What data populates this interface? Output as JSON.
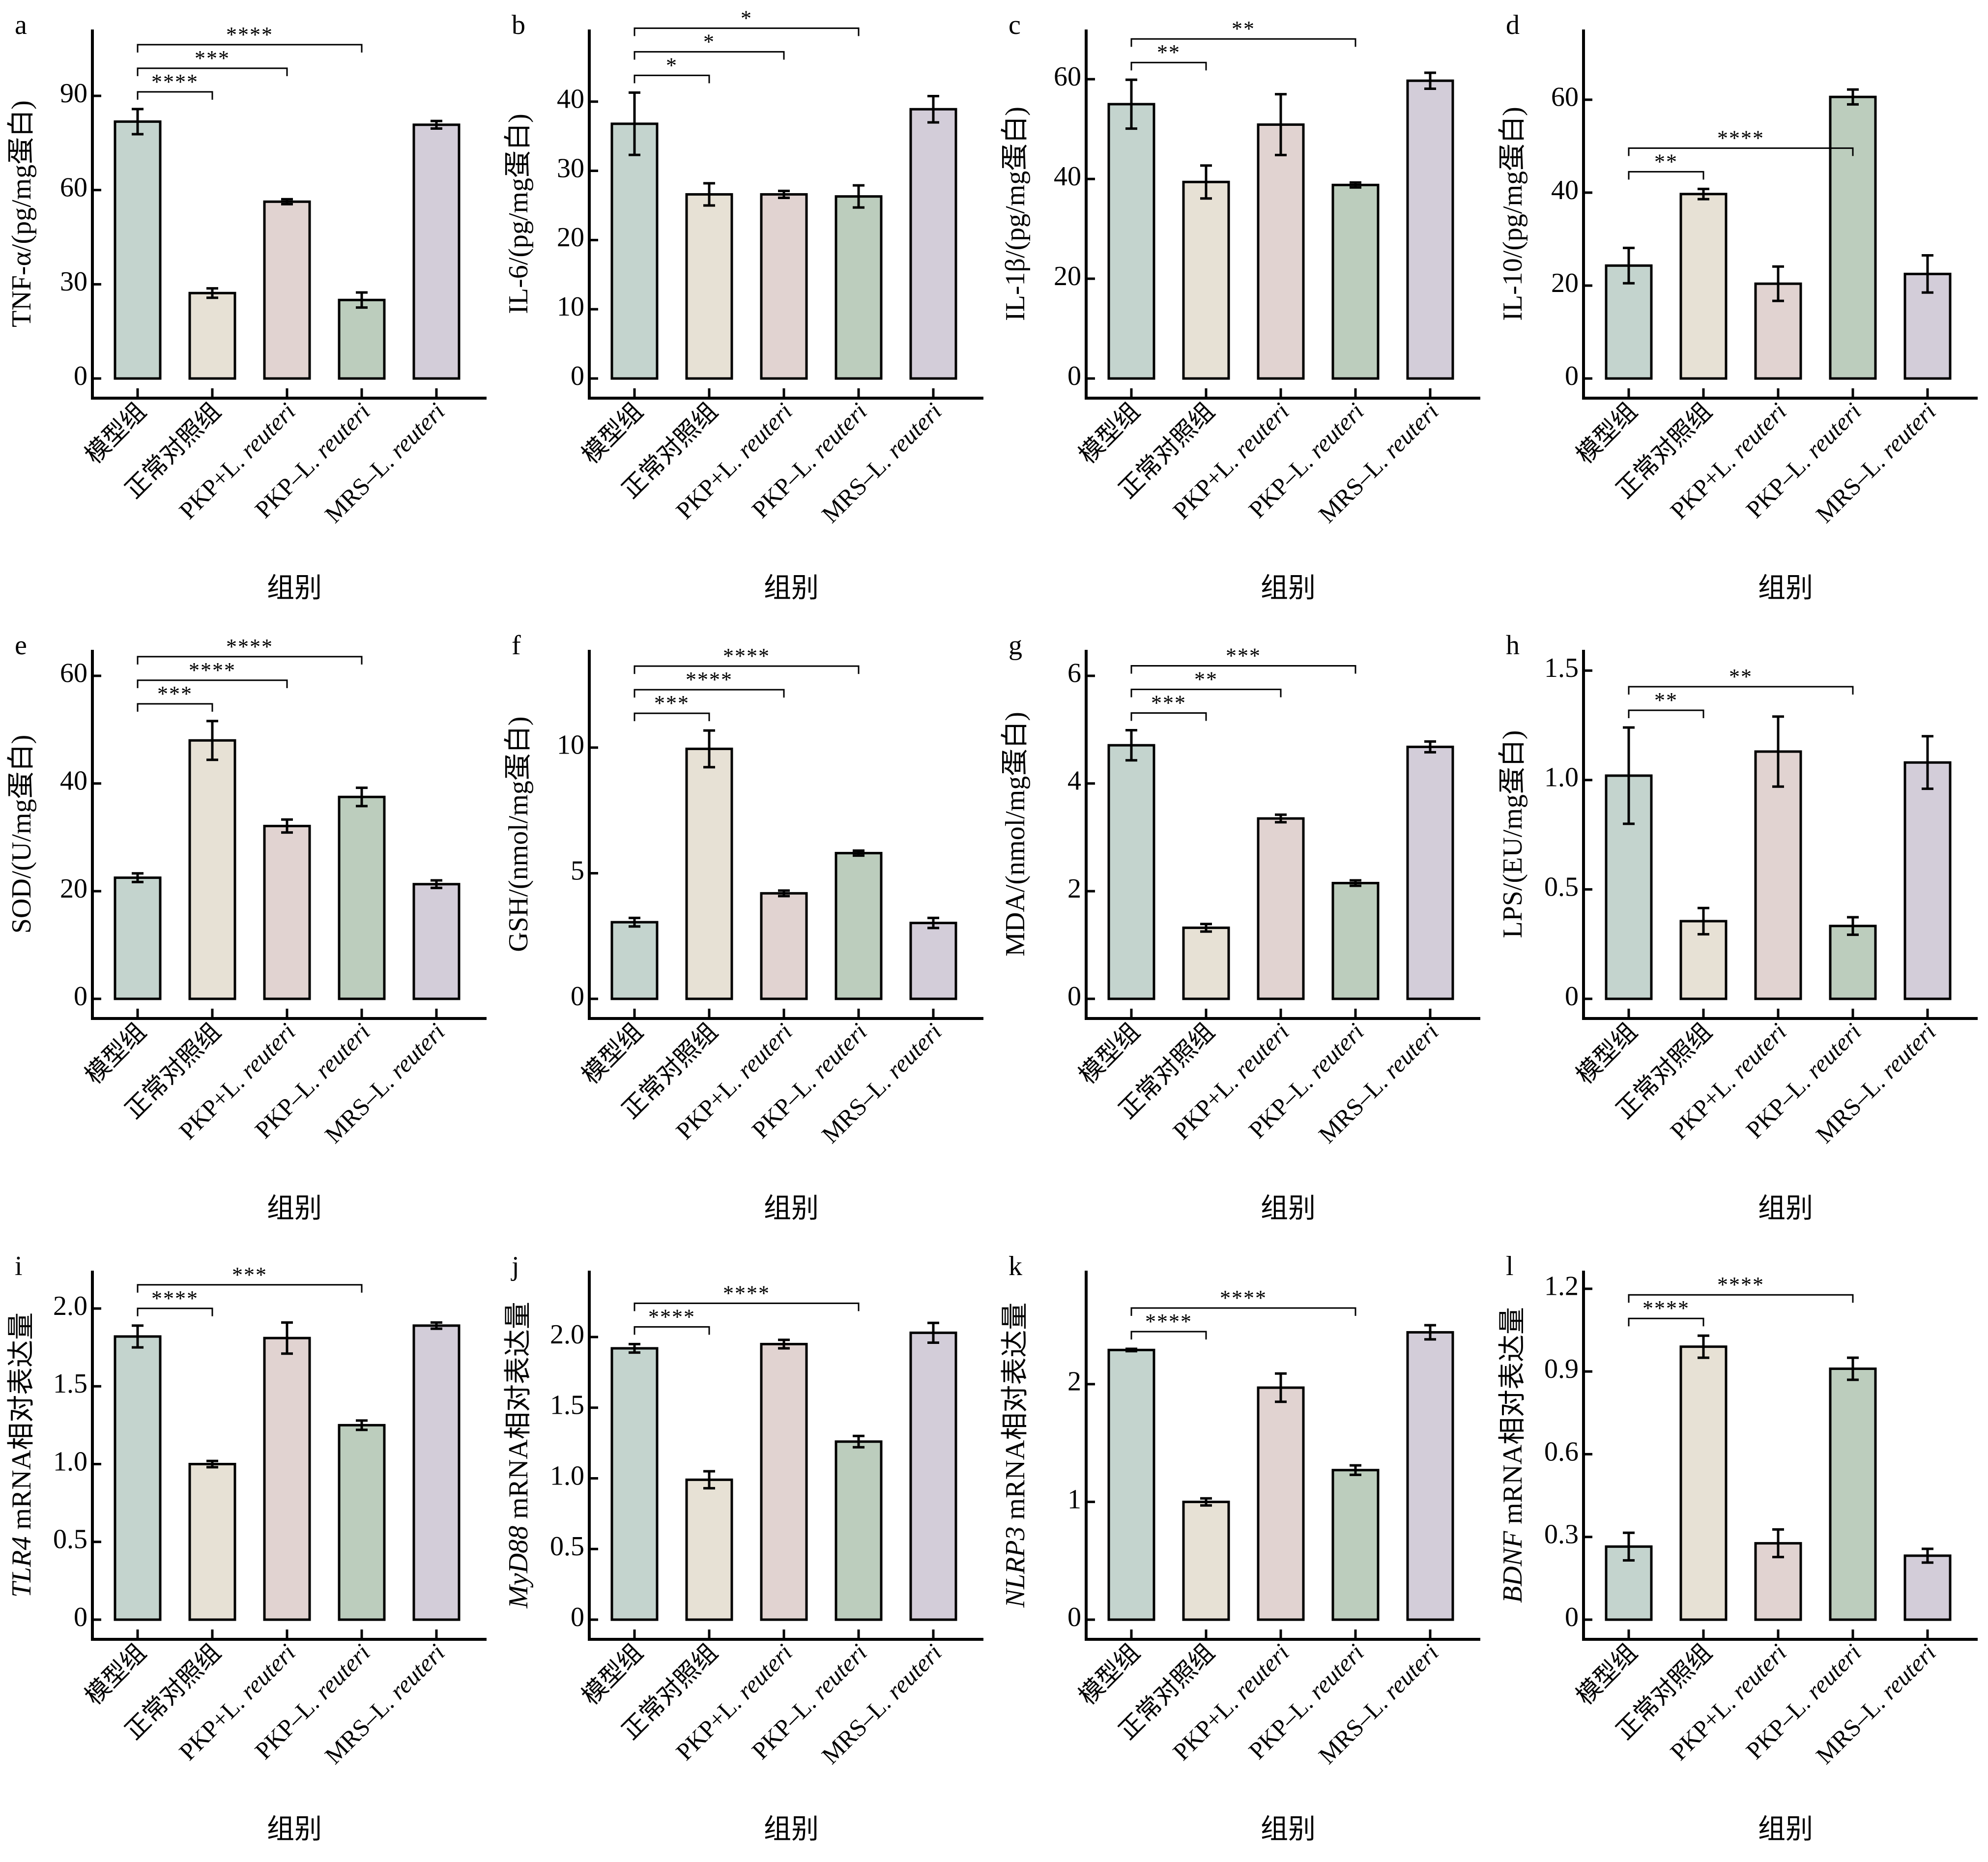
{
  "figure": {
    "groups": [
      "模型组",
      "正常对照组",
      "PKP+L. reuteri",
      "PKP–L. reuteri",
      "MRS–L. reuteri"
    ],
    "group_labels": [
      {
        "plain": "模型组",
        "italic": ""
      },
      {
        "plain": "正常对照组",
        "italic": ""
      },
      {
        "plain": "PKP+L.",
        "italic": " reuteri"
      },
      {
        "plain": "PKP–L.",
        "italic": " reuteri"
      },
      {
        "plain": "MRS–L.",
        "italic": " reuteri"
      }
    ],
    "bar_colors": [
      "#C4D4CE",
      "#E7E1D5",
      "#E1D3D1",
      "#BCCDBD",
      "#D3CDD9"
    ],
    "outline_color": "#000000"
  },
  "chart_data": [
    {
      "panel": "a",
      "type": "bar",
      "xlabel": "组别",
      "ylabel": {
        "italic": "",
        "plain": "TNF-α/(pg/mg蛋白)"
      },
      "ylim": [
        0,
        108
      ],
      "yticks": [
        0,
        30,
        60,
        90
      ],
      "ytick_labels": [
        "0",
        "30",
        "60",
        "90"
      ],
      "categories": [
        "模型组",
        "正常对照组",
        "PKP+L. reuteri",
        "PKP–L. reuteri",
        "MRS–L. reuteri"
      ],
      "values": [
        81.8,
        27.2,
        56.3,
        25.0,
        80.8
      ],
      "errors": [
        4.0,
        1.5,
        0.8,
        2.4,
        1.2
      ],
      "significance": [
        {
          "from": 0,
          "to": 1,
          "label": "****"
        },
        {
          "from": 0,
          "to": 2,
          "label": "***"
        },
        {
          "from": 0,
          "to": 3,
          "label": "****"
        }
      ]
    },
    {
      "panel": "b",
      "type": "bar",
      "xlabel": "组别",
      "ylabel": {
        "italic": "",
        "plain": "IL-6/(pg/mg蛋白)"
      },
      "ylim": [
        0,
        49
      ],
      "yticks": [
        0,
        10,
        20,
        30,
        40
      ],
      "ytick_labels": [
        "0",
        "10",
        "20",
        "30",
        "40"
      ],
      "categories": [
        "模型组",
        "正常对照组",
        "PKP+L. reuteri",
        "PKP–L. reuteri",
        "MRS–L. reuteri"
      ],
      "values": [
        36.8,
        26.6,
        26.6,
        26.3,
        38.9
      ],
      "errors": [
        4.5,
        1.6,
        0.5,
        1.6,
        1.9
      ],
      "significance": [
        {
          "from": 0,
          "to": 1,
          "label": "*"
        },
        {
          "from": 0,
          "to": 2,
          "label": "*"
        },
        {
          "from": 0,
          "to": 3,
          "label": "*"
        }
      ]
    },
    {
      "panel": "c",
      "type": "bar",
      "xlabel": "组别",
      "ylabel": {
        "italic": "",
        "plain": "IL-1β/(pg/mg蛋白)"
      },
      "ylim": [
        0,
        68
      ],
      "yticks": [
        0,
        20,
        40,
        60
      ],
      "ytick_labels": [
        "0",
        "20",
        "40",
        "60"
      ],
      "categories": [
        "模型组",
        "正常对照组",
        "PKP+L. reuteri",
        "PKP–L. reuteri",
        "MRS–L. reuteri"
      ],
      "values": [
        55.0,
        39.4,
        50.9,
        38.8,
        59.7
      ],
      "errors": [
        4.9,
        3.3,
        6.1,
        0.5,
        1.6
      ],
      "significance": [
        {
          "from": 0,
          "to": 1,
          "label": "**"
        },
        {
          "from": 0,
          "to": 3,
          "label": "**"
        }
      ]
    },
    {
      "panel": "d",
      "type": "bar",
      "xlabel": "组别",
      "ylabel": {
        "italic": "",
        "plain": "IL-10/(pg/mg蛋白)"
      },
      "ylim": [
        0,
        73
      ],
      "yticks": [
        0,
        20,
        40,
        60
      ],
      "ytick_labels": [
        "0",
        "20",
        "40",
        "60"
      ],
      "categories": [
        "模型组",
        "正常对照组",
        "PKP+L. reuteri",
        "PKP–L. reuteri",
        "MRS–L. reuteri"
      ],
      "values": [
        24.3,
        39.7,
        20.4,
        60.6,
        22.5
      ],
      "errors": [
        3.8,
        1.1,
        3.7,
        1.6,
        4.0
      ],
      "significance": [
        {
          "from": 0,
          "to": 1,
          "label": "**"
        },
        {
          "from": 0,
          "to": 3,
          "label": "****"
        }
      ]
    },
    {
      "panel": "e",
      "type": "bar",
      "xlabel": "组别",
      "ylabel": {
        "italic": "",
        "plain": "SOD/(U/mg蛋白)"
      },
      "ylim": [
        0,
        63
      ],
      "yticks": [
        0,
        20,
        40,
        60
      ],
      "ytick_labels": [
        "0",
        "20",
        "40",
        "60"
      ],
      "categories": [
        "模型组",
        "正常对照组",
        "PKP+L. reuteri",
        "PKP–L. reuteri",
        "MRS–L. reuteri"
      ],
      "values": [
        22.5,
        48.0,
        32.1,
        37.5,
        21.3
      ],
      "errors": [
        0.8,
        3.6,
        1.2,
        1.7,
        0.7
      ],
      "significance": [
        {
          "from": 0,
          "to": 1,
          "label": "***"
        },
        {
          "from": 0,
          "to": 2,
          "label": "****"
        },
        {
          "from": 0,
          "to": 3,
          "label": "****"
        }
      ]
    },
    {
      "panel": "f",
      "type": "bar",
      "xlabel": "组别",
      "ylabel": {
        "italic": "",
        "plain": "GSH/(nmol/mg蛋白)"
      },
      "ylim": [
        0,
        13.5
      ],
      "yticks": [
        0,
        5,
        10
      ],
      "ytick_labels": [
        "0",
        "5",
        "10"
      ],
      "categories": [
        "模型组",
        "正常对照组",
        "PKP+L. reuteri",
        "PKP–L. reuteri",
        "MRS–L. reuteri"
      ],
      "values": [
        3.05,
        9.95,
        4.2,
        5.8,
        3.02
      ],
      "errors": [
        0.17,
        0.73,
        0.11,
        0.1,
        0.2
      ],
      "significance": [
        {
          "from": 0,
          "to": 1,
          "label": "***"
        },
        {
          "from": 0,
          "to": 2,
          "label": "****"
        },
        {
          "from": 0,
          "to": 3,
          "label": "****"
        }
      ]
    },
    {
      "panel": "g",
      "type": "bar",
      "xlabel": "组别",
      "ylabel": {
        "italic": "",
        "plain": "MDA/(nmol/mg蛋白)"
      },
      "ylim": [
        0,
        6.3
      ],
      "yticks": [
        0,
        2,
        4,
        6
      ],
      "ytick_labels": [
        "0",
        "2",
        "4",
        "6"
      ],
      "categories": [
        "模型组",
        "正常对照组",
        "PKP+L. reuteri",
        "PKP–L. reuteri",
        "MRS–L. reuteri"
      ],
      "values": [
        4.71,
        1.32,
        3.35,
        2.15,
        4.68
      ],
      "errors": [
        0.28,
        0.07,
        0.07,
        0.05,
        0.1
      ],
      "significance": [
        {
          "from": 0,
          "to": 1,
          "label": "***"
        },
        {
          "from": 0,
          "to": 2,
          "label": "**"
        },
        {
          "from": 0,
          "to": 3,
          "label": "***"
        }
      ]
    },
    {
      "panel": "h",
      "type": "bar",
      "xlabel": "组别",
      "ylabel": {
        "italic": "",
        "plain": "LPS/(EU/mg蛋白)"
      },
      "ylim": [
        0,
        1.55
      ],
      "yticks": [
        0,
        0.5,
        1.0,
        1.5
      ],
      "ytick_labels": [
        "0",
        "0.5",
        "1.0",
        "1.5"
      ],
      "categories": [
        "模型组",
        "正常对照组",
        "PKP+L. reuteri",
        "PKP–L. reuteri",
        "MRS–L. reuteri"
      ],
      "values": [
        1.02,
        0.355,
        1.13,
        0.333,
        1.08
      ],
      "errors": [
        0.22,
        0.06,
        0.16,
        0.04,
        0.12
      ],
      "significance": [
        {
          "from": 0,
          "to": 1,
          "label": "**"
        },
        {
          "from": 0,
          "to": 3,
          "label": "**"
        }
      ]
    },
    {
      "panel": "i",
      "type": "bar",
      "xlabel": "组别",
      "ylabel": {
        "italic": "TLR4",
        "plain": " mRNA相对表达量"
      },
      "ylim": [
        0,
        2.18
      ],
      "yticks": [
        0,
        0.5,
        1.0,
        1.5,
        2.0
      ],
      "ytick_labels": [
        "0",
        "0.5",
        "1.0",
        "1.5",
        "2.0"
      ],
      "categories": [
        "模型组",
        "正常对照组",
        "PKP+L. reuteri",
        "PKP–L. reuteri",
        "MRS–L. reuteri"
      ],
      "values": [
        1.82,
        1.0,
        1.81,
        1.25,
        1.89
      ],
      "errors": [
        0.07,
        0.02,
        0.1,
        0.03,
        0.02
      ],
      "significance": [
        {
          "from": 0,
          "to": 1,
          "label": "****"
        },
        {
          "from": 0,
          "to": 3,
          "label": "***"
        }
      ]
    },
    {
      "panel": "j",
      "type": "bar",
      "xlabel": "组别",
      "ylabel": {
        "italic": "MyD88",
        "plain": " mRNA相对表达量"
      },
      "ylim": [
        0,
        2.4
      ],
      "yticks": [
        0,
        0.5,
        1.0,
        1.5,
        2.0
      ],
      "ytick_labels": [
        "0",
        "0.5",
        "1.0",
        "1.5",
        "2.0"
      ],
      "categories": [
        "模型组",
        "正常对照组",
        "PKP+L. reuteri",
        "PKP–L. reuteri",
        "MRS–L. reuteri"
      ],
      "values": [
        1.92,
        0.99,
        1.95,
        1.26,
        2.03
      ],
      "errors": [
        0.03,
        0.06,
        0.03,
        0.04,
        0.07
      ],
      "significance": [
        {
          "from": 0,
          "to": 1,
          "label": "****"
        },
        {
          "from": 0,
          "to": 3,
          "label": "****"
        }
      ]
    },
    {
      "panel": "k",
      "type": "bar",
      "xlabel": "组别",
      "ylabel": {
        "italic": "NLRP3",
        "plain": " mRNA相对表达量"
      },
      "ylim": [
        0,
        2.88
      ],
      "yticks": [
        0,
        1,
        2
      ],
      "ytick_labels": [
        "0",
        "1",
        "2"
      ],
      "categories": [
        "模型组",
        "正常对照组",
        "PKP+L. reuteri",
        "PKP–L. reuteri",
        "MRS–L. reuteri"
      ],
      "values": [
        2.29,
        1.0,
        1.97,
        1.27,
        2.44
      ],
      "errors": [
        0.01,
        0.03,
        0.12,
        0.04,
        0.06
      ],
      "significance": [
        {
          "from": 0,
          "to": 1,
          "label": "****"
        },
        {
          "from": 0,
          "to": 3,
          "label": "****"
        }
      ]
    },
    {
      "panel": "l",
      "type": "bar",
      "xlabel": "组别",
      "ylabel": {
        "italic": "BDNF",
        "plain": " mRNA相对表达量"
      },
      "ylim": [
        0,
        1.23
      ],
      "yticks": [
        0,
        0.3,
        0.6,
        0.9,
        1.2
      ],
      "ytick_labels": [
        "0",
        "0.3",
        "0.6",
        "0.9",
        "1.2"
      ],
      "categories": [
        "模型组",
        "正常对照组",
        "PKP+L. reuteri",
        "PKP–L. reuteri",
        "MRS–L. reuteri"
      ],
      "values": [
        0.265,
        0.99,
        0.277,
        0.91,
        0.232
      ],
      "errors": [
        0.05,
        0.04,
        0.05,
        0.04,
        0.025
      ],
      "significance": [
        {
          "from": 0,
          "to": 1,
          "label": "****"
        },
        {
          "from": 0,
          "to": 3,
          "label": "****"
        }
      ]
    }
  ]
}
